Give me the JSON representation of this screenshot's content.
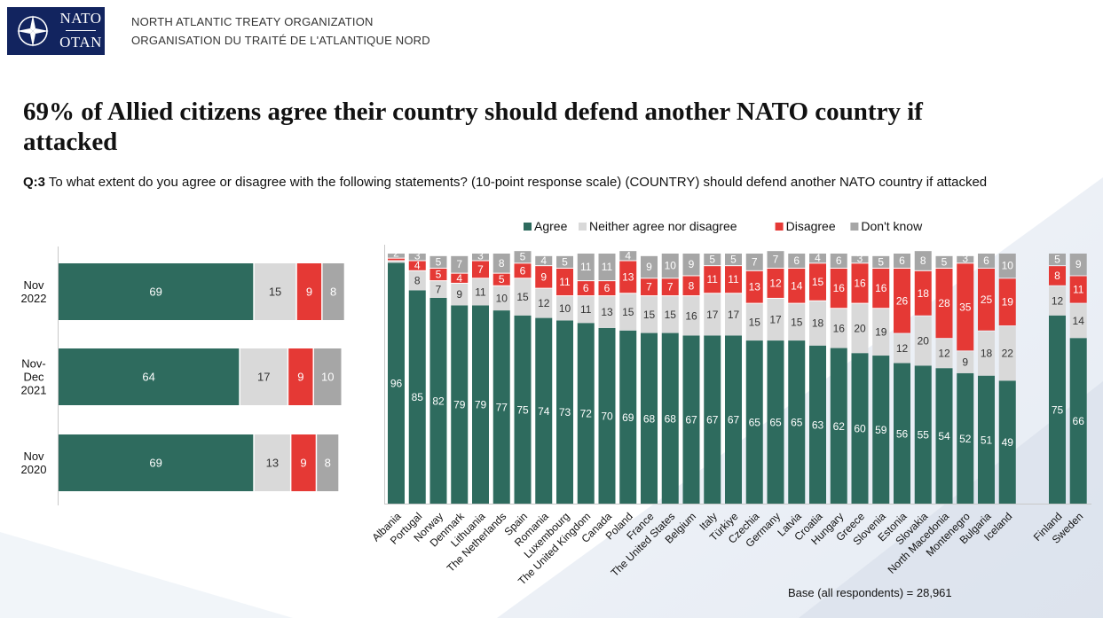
{
  "header": {
    "logo_top": "NATO",
    "logo_bottom": "OTAN",
    "org_en": "NORTH ATLANTIC TREATY ORGANIZATION",
    "org_fr": "ORGANISATION DU TRAITÉ DE L'ATLANTIQUE NORD"
  },
  "headline": "69% of Allied citizens agree their country should defend another NATO country if attacked",
  "question": {
    "prefix": "Q:3",
    "text": "To what extent do you agree or disagree with the following statements? (10-point response scale) (COUNTRY) should defend another NATO country if attacked"
  },
  "colors": {
    "agree": "#2e6b5e",
    "neither": "#d9d9d9",
    "disagree": "#e53935",
    "dont_know": "#a6a6a6"
  },
  "chart_data": [
    {
      "type": "bar",
      "orientation": "horizontal",
      "stacked": true,
      "categories": [
        "Nov\n2022",
        "Nov-\nDec\n2021",
        "Nov\n2020"
      ],
      "series": [
        {
          "name": "Agree",
          "values": [
            69,
            64,
            69
          ]
        },
        {
          "name": "Neither agree nor disagree",
          "values": [
            15,
            17,
            13
          ]
        },
        {
          "name": "Disagree",
          "values": [
            9,
            9,
            9
          ]
        },
        {
          "name": "Don't know",
          "values": [
            8,
            10,
            8
          ]
        }
      ]
    },
    {
      "type": "bar",
      "orientation": "vertical",
      "stacked": true,
      "legend": "top",
      "footnote": "Base (all respondents) = 28,961",
      "categories": [
        "Albania",
        "Portugal",
        "Norway",
        "Denmark",
        "Lithuania",
        "The Netherlands",
        "Spain",
        "Romania",
        "Luxembourg",
        "The United Kingdom",
        "Canada",
        "Poland",
        "France",
        "The United States",
        "Belgium",
        "Italy",
        "Türkiye",
        "Czechia",
        "Germany",
        "Latvia",
        "Croatia",
        "Hungary",
        "Greece",
        "Slovenia",
        "Estonia",
        "Slovakia",
        "North Macedonia",
        "Montenegro",
        "Bulgaria",
        "Iceland",
        "Finland",
        "Sweden"
      ],
      "series": [
        {
          "name": "Agree",
          "values": [
            96,
            85,
            82,
            79,
            79,
            77,
            75,
            74,
            73,
            72,
            70,
            69,
            68,
            68,
            67,
            67,
            67,
            65,
            65,
            65,
            63,
            62,
            60,
            59,
            56,
            55,
            54,
            52,
            51,
            49,
            75,
            66
          ]
        },
        {
          "name": "Neither agree nor disagree",
          "values": [
            1,
            8,
            7,
            9,
            11,
            10,
            15,
            12,
            10,
            11,
            13,
            15,
            15,
            15,
            16,
            17,
            17,
            15,
            17,
            15,
            18,
            16,
            20,
            19,
            12,
            20,
            12,
            9,
            18,
            22,
            12,
            14
          ]
        },
        {
          "name": "Disagree",
          "values": [
            1,
            4,
            5,
            4,
            7,
            5,
            6,
            9,
            11,
            6,
            6,
            13,
            7,
            7,
            8,
            11,
            11,
            13,
            12,
            14,
            15,
            16,
            16,
            16,
            26,
            18,
            28,
            35,
            25,
            19,
            8,
            11
          ]
        },
        {
          "name": "Don't know",
          "values": [
            2,
            3,
            5,
            7,
            3,
            8,
            5,
            4,
            5,
            11,
            11,
            4,
            9,
            10,
            9,
            5,
            5,
            7,
            7,
            6,
            4,
            6,
            3,
            5,
            6,
            8,
            5,
            3,
            6,
            10,
            5,
            9
          ]
        }
      ],
      "segment_labels_hidden": {
        "Albania": [
          "Neither agree nor disagree",
          "Disagree"
        ]
      }
    }
  ]
}
